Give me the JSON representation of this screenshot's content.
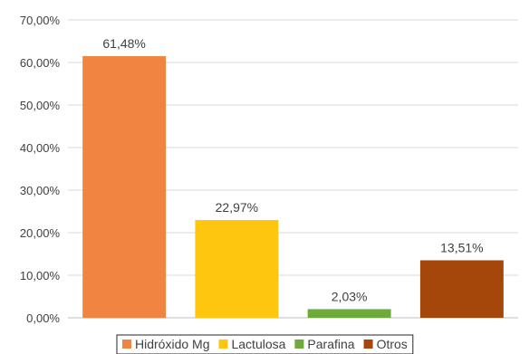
{
  "chart_data": {
    "type": "bar",
    "categories": [
      "Hidróxido Mg",
      "Lactulosa",
      "Parafina",
      "Otros"
    ],
    "values": [
      61.48,
      22.97,
      2.03,
      13.51
    ],
    "data_labels": [
      "61,48%",
      "22,97%",
      "2,03%",
      "13,51%"
    ],
    "colors": [
      "#F08440",
      "#FFC60F",
      "#6EAA3C",
      "#A5460A"
    ],
    "ylim": [
      0,
      70
    ],
    "yticks": [
      0,
      10,
      20,
      30,
      40,
      50,
      60,
      70
    ],
    "ytick_labels": [
      "0,00%",
      "10,00%",
      "20,00%",
      "30,00%",
      "40,00%",
      "50,00%",
      "60,00%",
      "70,00%"
    ],
    "grid": true,
    "legend_position": "bottom",
    "title": "",
    "xlabel": "",
    "ylabel": ""
  }
}
